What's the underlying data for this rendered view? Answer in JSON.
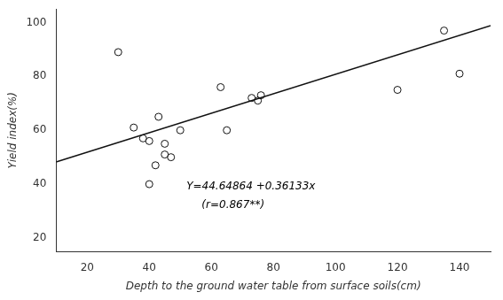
{
  "chart_data": {
    "type": "scatter",
    "xlabel": "Depth to the ground water table from surface soils(cm)",
    "ylabel": "Yield index(%)",
    "annotations": [
      "Y=44.64864 +0.36133x",
      "(r=0.867**)"
    ],
    "series": [
      {
        "type": "scatter",
        "marker": "circle",
        "color": "#111111",
        "x": [
          30,
          35,
          38,
          40,
          40,
          42,
          43,
          45,
          45,
          47,
          50,
          63,
          65,
          73,
          75,
          76,
          120,
          135,
          140
        ],
        "values": [
          89,
          61,
          57,
          56,
          40,
          47,
          65,
          55,
          51,
          50,
          60,
          76,
          60,
          72,
          71,
          73,
          75,
          97,
          81
        ]
      },
      {
        "type": "line",
        "line_style": "solid",
        "color": "#111111",
        "x": [
          10,
          150
        ],
        "values": [
          48.26194,
          98.84814
        ]
      }
    ],
    "xlim": [
      10,
      150
    ],
    "ylim": [
      15,
      105
    ],
    "xticks": [
      20,
      40,
      60,
      80,
      100,
      120,
      140
    ],
    "yticks": [
      20,
      40,
      60,
      80,
      100
    ],
    "grid": false
  }
}
